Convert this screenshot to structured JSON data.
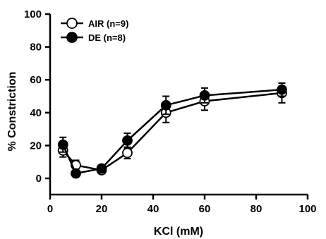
{
  "chart_data": {
    "type": "line",
    "xlabel": "KCl (mM)",
    "ylabel": "% Constriction",
    "xlim": [
      0,
      100
    ],
    "ylim": [
      -10,
      100
    ],
    "xticks": [
      0,
      20,
      40,
      60,
      80,
      100
    ],
    "yticks": [
      0,
      20,
      40,
      60,
      80,
      100
    ],
    "x": [
      5,
      10,
      20,
      30,
      45,
      60,
      90
    ],
    "legend_position": "top-left",
    "series": [
      {
        "name": "AIR (n=9)",
        "marker": "open-circle",
        "fill": "#ffffff",
        "values": [
          17,
          8,
          5,
          15.5,
          40,
          47,
          52
        ],
        "errors": [
          4,
          3,
          2,
          3.5,
          6,
          5.5,
          6
        ]
      },
      {
        "name": "DE (n=8)",
        "marker": "filled-circle",
        "fill": "#000000",
        "values": [
          20.5,
          3,
          6,
          23,
          44.5,
          50.5,
          54
        ],
        "errors": [
          4.5,
          1,
          1.5,
          4.5,
          5.5,
          4.5,
          4
        ]
      }
    ]
  }
}
